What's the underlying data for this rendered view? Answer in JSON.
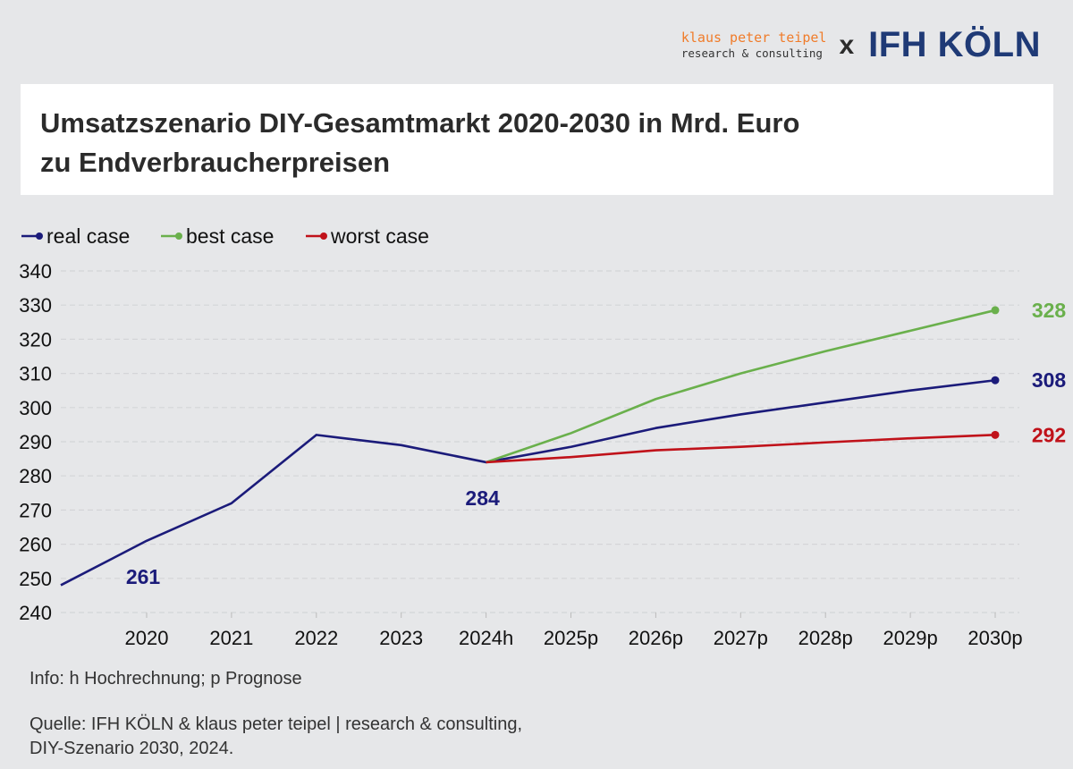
{
  "logos": {
    "kpt_line1": "klaus peter teipel",
    "kpt_line2": "research & consulting",
    "separator": "x",
    "ifh": "IFH KÖLN"
  },
  "title": {
    "line1": "Umsatzszenario DIY-Gesamtmarkt 2020-2030 in Mrd. Euro",
    "line2": "zu Endverbraucherpreisen"
  },
  "info": "Info: h Hochrechnung; p Prognose",
  "source": {
    "line1": "Quelle: IFH KÖLN & klaus peter teipel | research & consulting,",
    "line2": "DIY-Szenario 2030, 2024."
  },
  "chart_data": {
    "type": "line",
    "title": "Umsatzszenario DIY-Gesamtmarkt 2020-2030 in Mrd. Euro zu Endverbraucherpreisen",
    "categories": [
      "2020",
      "2021",
      "2022",
      "2023",
      "2024h",
      "2025p",
      "2026p",
      "2027p",
      "2028p",
      "2029p",
      "2030p"
    ],
    "ylim": [
      240,
      340
    ],
    "yticks": [
      240,
      250,
      260,
      270,
      280,
      290,
      300,
      310,
      320,
      330,
      340
    ],
    "grid": true,
    "legend_position": "top-left",
    "series": [
      {
        "name": "real case",
        "color": "#1b1b7a",
        "start_value": 248,
        "values": [
          261,
          272,
          292,
          289,
          284,
          288.5,
          294,
          298,
          301.5,
          305,
          308
        ],
        "labels": [
          {
            "index": 0,
            "text": "261",
            "position": "below"
          },
          {
            "index": 4,
            "text": "284",
            "position": "below"
          },
          {
            "index": 10,
            "text": "308",
            "position": "right"
          }
        ]
      },
      {
        "name": "best case",
        "color": "#6ab04c",
        "values": [
          null,
          null,
          null,
          null,
          284,
          292.5,
          302.5,
          310,
          316.5,
          322.5,
          328.5
        ],
        "labels": [
          {
            "index": 10,
            "text": "328",
            "position": "right"
          }
        ]
      },
      {
        "name": "worst case",
        "color": "#c0121a",
        "values": [
          null,
          null,
          null,
          null,
          284,
          285.5,
          287.5,
          288.5,
          289.8,
          291,
          292
        ],
        "labels": [
          {
            "index": 10,
            "text": "292",
            "position": "right"
          }
        ]
      }
    ]
  }
}
